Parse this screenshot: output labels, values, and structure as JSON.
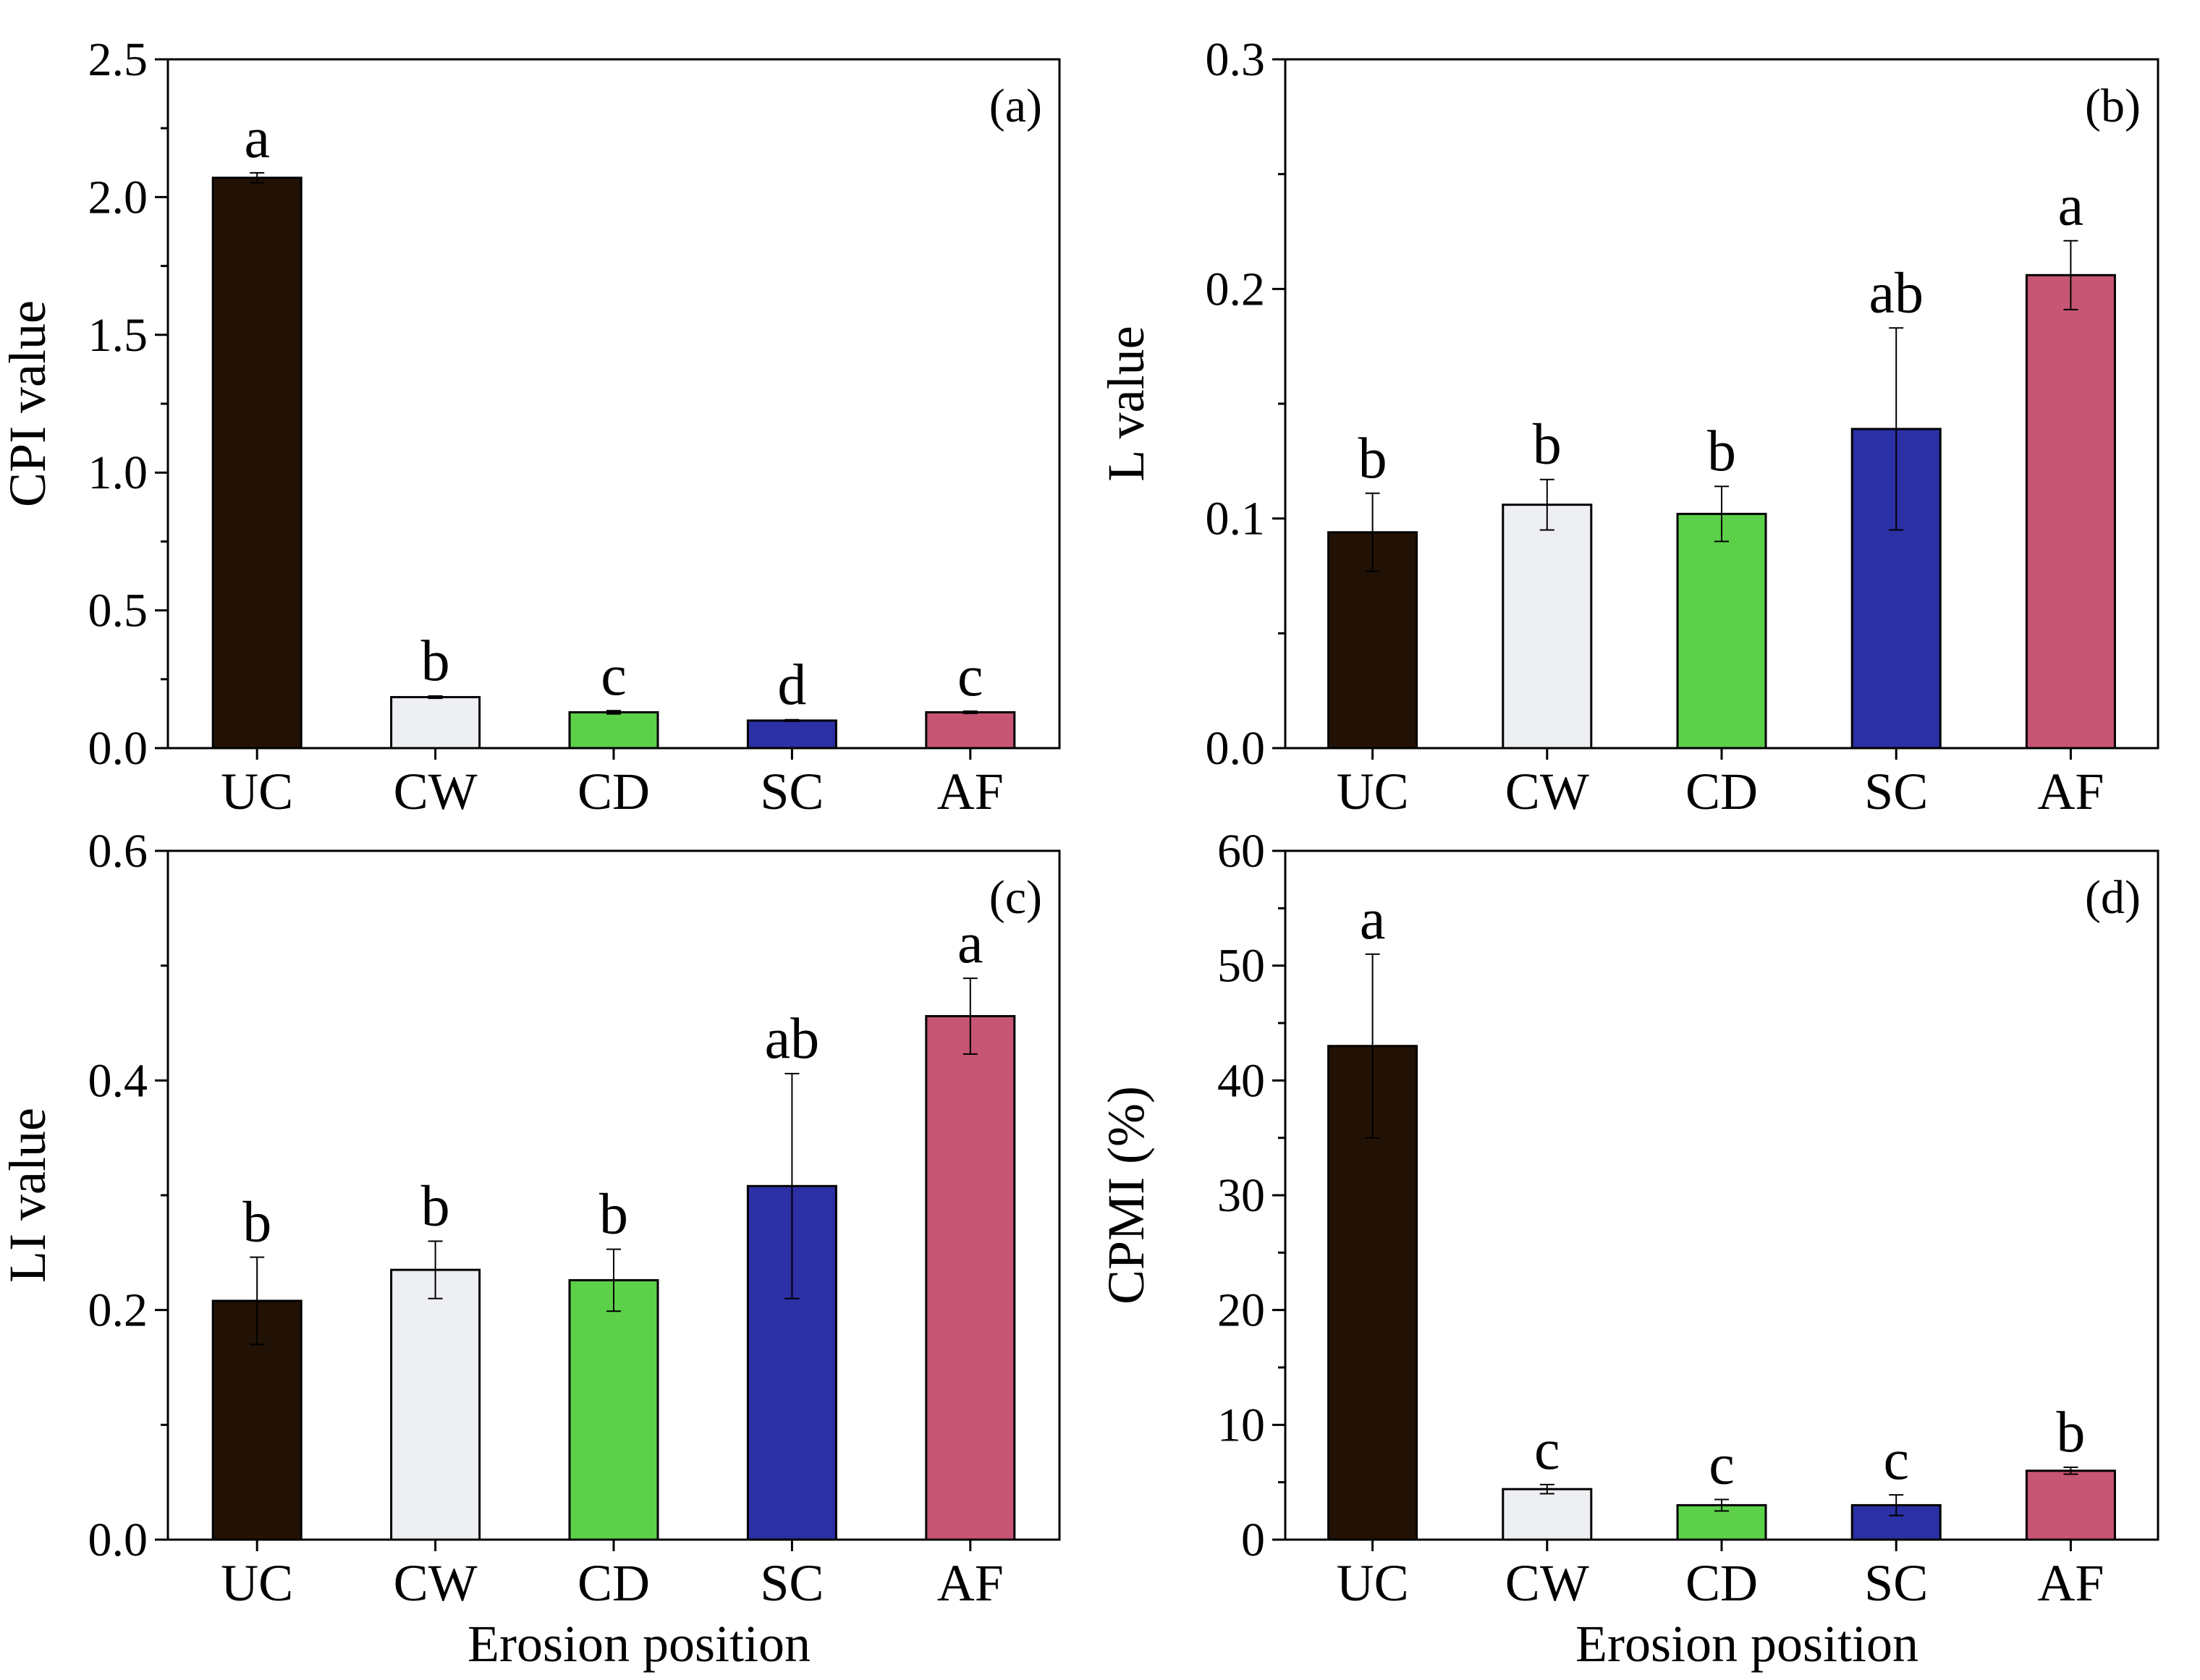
{
  "colors": {
    "UC": "#221205",
    "CW": "#eeeff2",
    "CD": "#5cd049",
    "SC": "#2b30a4",
    "AF": "#c75574",
    "axis": "#000000"
  },
  "chart_data": [
    {
      "type": "bar",
      "panel_label": "(a)",
      "categories": [
        "UC",
        "CW",
        "CD",
        "SC",
        "AF"
      ],
      "values": [
        2.07,
        0.185,
        0.13,
        0.1,
        0.13
      ],
      "errors": [
        0.018,
        0.004,
        0.006,
        0.003,
        0.004
      ],
      "significance": [
        "a",
        "b",
        "c",
        "d",
        "c"
      ],
      "ylabel": "CPI value",
      "xlabel": "",
      "ylim": [
        0,
        2.5
      ],
      "yticks": [
        "0.0",
        "0.5",
        "1.0",
        "1.5",
        "2.0",
        "2.5"
      ]
    },
    {
      "type": "bar",
      "panel_label": "(b)",
      "categories": [
        "UC",
        "CW",
        "CD",
        "SC",
        "AF"
      ],
      "values": [
        0.094,
        0.106,
        0.102,
        0.139,
        0.206
      ],
      "errors": [
        0.017,
        0.011,
        0.012,
        0.044,
        0.015
      ],
      "significance": [
        "b",
        "b",
        "b",
        "ab",
        "a"
      ],
      "ylabel": "L value",
      "xlabel": "",
      "ylim": [
        0,
        0.3
      ],
      "yticks": [
        "0.0",
        "0.1",
        "0.2",
        "0.3"
      ]
    },
    {
      "type": "bar",
      "panel_label": "(c)",
      "categories": [
        "UC",
        "CW",
        "CD",
        "SC",
        "AF"
      ],
      "values": [
        0.208,
        0.235,
        0.226,
        0.308,
        0.456
      ],
      "errors": [
        0.038,
        0.025,
        0.027,
        0.098,
        0.033
      ],
      "significance": [
        "b",
        "b",
        "b",
        "ab",
        "a"
      ],
      "ylabel": "LI value",
      "xlabel": "Erosion position",
      "ylim": [
        0,
        0.6
      ],
      "yticks": [
        "0.0",
        "0.2",
        "0.4",
        "0.6"
      ]
    },
    {
      "type": "bar",
      "panel_label": "(d)",
      "categories": [
        "UC",
        "CW",
        "CD",
        "SC",
        "AF"
      ],
      "values": [
        43.0,
        4.4,
        3.0,
        3.0,
        6.0
      ],
      "errors": [
        8.0,
        0.4,
        0.5,
        0.9,
        0.3
      ],
      "significance": [
        "a",
        "c",
        "c",
        "c",
        "b"
      ],
      "ylabel": "CPMI (%)",
      "xlabel": "Erosion position",
      "ylim": [
        0,
        60
      ],
      "yticks": [
        "0",
        "10",
        "20",
        "30",
        "40",
        "50",
        "60"
      ]
    }
  ]
}
